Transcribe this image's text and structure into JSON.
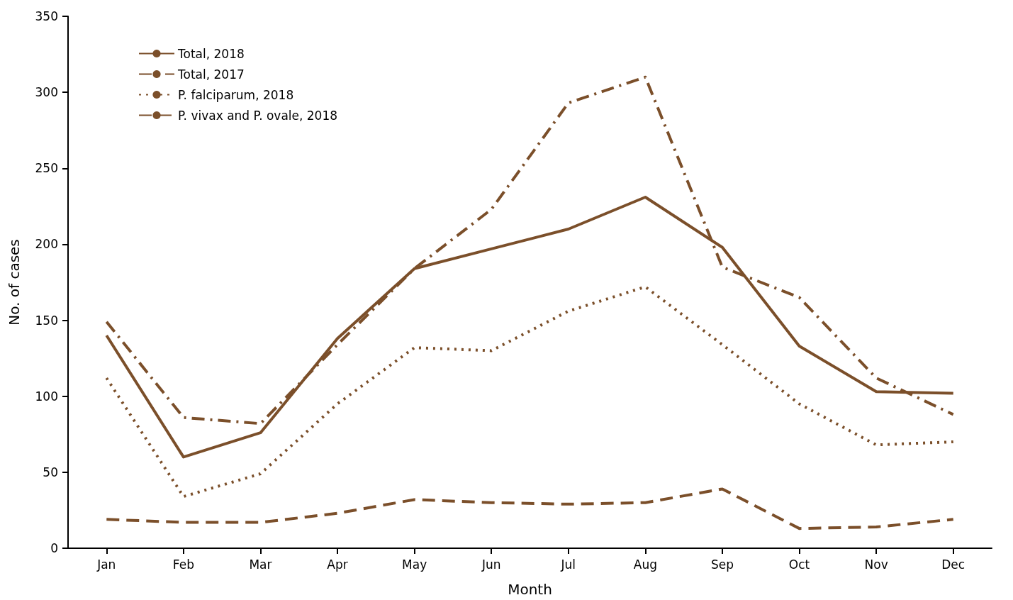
{
  "chart_data": {
    "type": "line",
    "xlabel": "Month",
    "ylabel": "No. of cases",
    "categories": [
      "Jan",
      "Feb",
      "Mar",
      "Apr",
      "May",
      "Jun",
      "Jul",
      "Aug",
      "Sep",
      "Oct",
      "Nov",
      "Dec"
    ],
    "series": [
      {
        "name": "Total, 2018",
        "color": "#7b4f2a",
        "line_style": "solid",
        "values": [
          140,
          60,
          76,
          138,
          184,
          197,
          210,
          231,
          198,
          133,
          103,
          102
        ]
      },
      {
        "name": "Total, 2017",
        "color": "#7b4f2a",
        "line_style": "dashdot",
        "values": [
          149,
          86,
          82,
          134,
          184,
          223,
          293,
          310,
          185,
          165,
          112,
          88
        ]
      },
      {
        "name": "P. falciparum, 2018",
        "color": "#7b4f2a",
        "line_style": "dotted",
        "values": [
          112,
          34,
          49,
          95,
          132,
          130,
          156,
          172,
          134,
          95,
          68,
          70
        ]
      },
      {
        "name": "P. vivax and P. ovale, 2018",
        "color": "#7b4f2a",
        "line_style": "dashed",
        "values": [
          19,
          17,
          17,
          23,
          32,
          30,
          29,
          30,
          39,
          13,
          14,
          19
        ]
      }
    ],
    "ylim": [
      0,
      350
    ],
    "yticks": [
      0,
      50,
      100,
      150,
      200,
      250,
      300,
      350
    ],
    "grid": false,
    "legend": "top left",
    "marker": "none"
  }
}
